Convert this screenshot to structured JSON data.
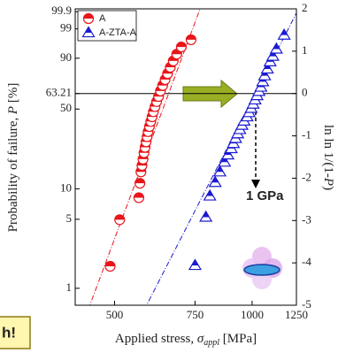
{
  "chart_data": {
    "type": "scatter",
    "xlabel_parts": [
      "Applied stress, ",
      "σ",
      "appl",
      " [MPa]"
    ],
    "ylabel_parts": [
      "Probability of failure, ",
      "P",
      " [%]"
    ],
    "y2label_parts": [
      "ln ln 1/(1-",
      "P",
      ")"
    ],
    "xscale": "log",
    "xlim": [
      410,
      1250
    ],
    "xticks": [
      500,
      750,
      1000,
      1250
    ],
    "ylim": [
      0.67,
      99.94
    ],
    "yscale": "weibull",
    "yticks": [
      1,
      5,
      10,
      50,
      63.21,
      90,
      99,
      99.9
    ],
    "y2lim": [
      -5,
      2
    ],
    "y2ticks": [
      -5,
      -4,
      -3,
      -2,
      -1,
      0,
      1,
      2
    ],
    "legend": "upper left",
    "series": [
      {
        "name": "A",
        "color": "#e8151b",
        "marker": "circle",
        "axis": "y2",
        "x": [
          489,
          513,
          565,
          568,
          571,
          574,
          577,
          580,
          583,
          586,
          589,
          592,
          596,
          600,
          604,
          608,
          613,
          618,
          624,
          630,
          637,
          645,
          653,
          662,
          672,
          684,
          700,
          735
        ],
        "values": [
          -4.08,
          -2.98,
          -2.46,
          -2.12,
          -1.85,
          -1.7,
          -1.55,
          -1.4,
          -1.27,
          -1.14,
          -1.02,
          -0.9,
          -0.78,
          -0.66,
          -0.55,
          -0.43,
          -0.31,
          -0.19,
          -0.07,
          0.06,
          0.19,
          0.33,
          0.47,
          0.62,
          0.77,
          0.93,
          1.1,
          1.27
        ]
      },
      {
        "name": "A-ZTA-A",
        "color": "#1a1ad0",
        "marker": "triangle",
        "axis": "y2",
        "x": [
          750,
          792,
          808,
          830,
          850,
          870,
          885,
          900,
          910,
          920,
          930,
          940,
          950,
          960,
          975,
          985,
          995,
          1005,
          1015,
          1025,
          1035,
          1045,
          1055,
          1065,
          1080,
          1095,
          1110,
          1130,
          1175
        ],
        "values": [
          -4.06,
          -2.92,
          -2.42,
          -2.1,
          -1.85,
          -1.62,
          -1.45,
          -1.3,
          -1.18,
          -1.06,
          -0.95,
          -0.85,
          -0.75,
          -0.65,
          -0.55,
          -0.45,
          -0.35,
          -0.25,
          -0.15,
          -0.05,
          0.05,
          0.15,
          0.28,
          0.42,
          0.58,
          0.75,
          0.88,
          1.05,
          1.38
        ]
      }
    ],
    "annotations": [
      "1 GPa",
      "h!"
    ]
  }
}
